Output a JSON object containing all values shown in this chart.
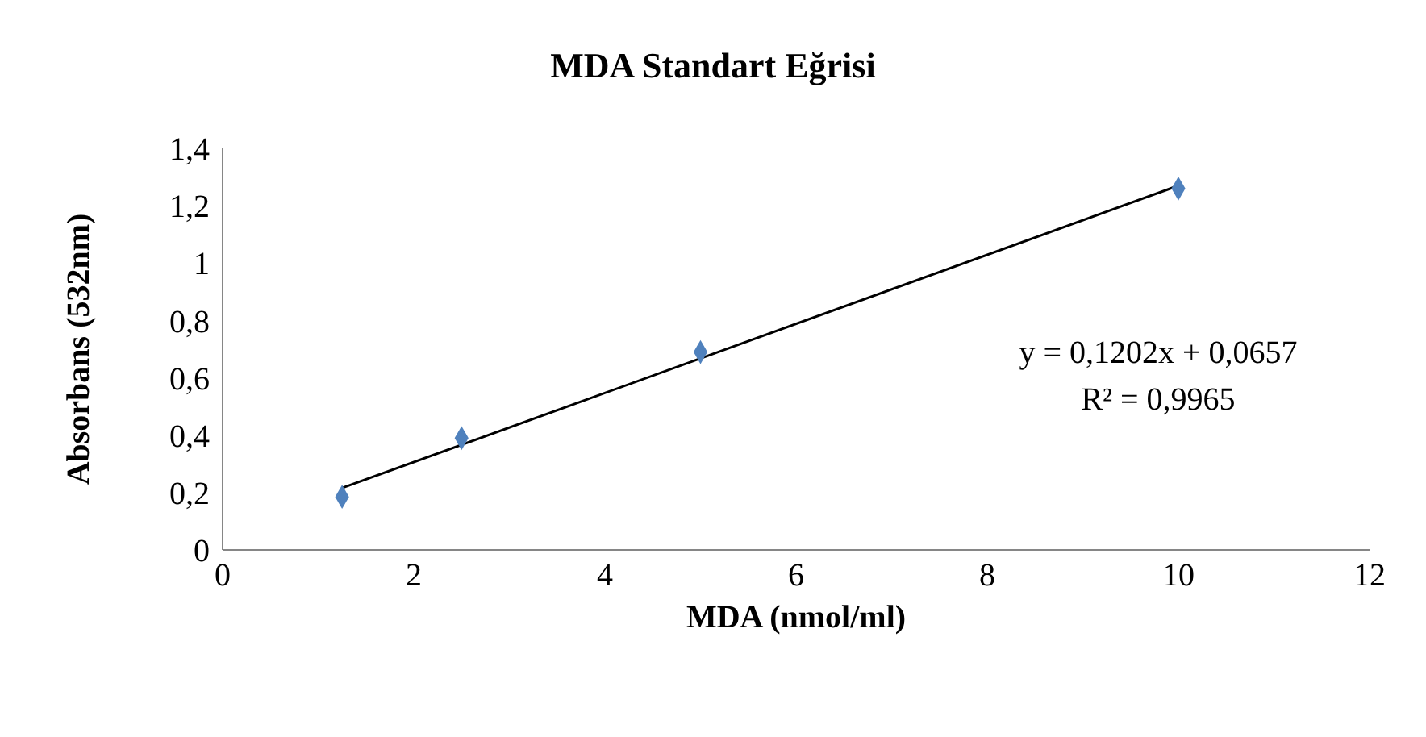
{
  "chart_data": {
    "type": "scatter",
    "title": "MDA Standart Eğrisi",
    "xlabel": "MDA (nmol/ml)",
    "ylabel": "Absorbans (532nm)",
    "series": [
      {
        "color": "#4f81bd",
        "marker": "diamond",
        "x": [
          1.25,
          2.5,
          5,
          10
        ],
        "values": [
          0.185,
          0.39,
          0.69,
          1.26
        ]
      },
      {
        "type": "line",
        "color": "#000000",
        "marker": "none",
        "line_style": "solid",
        "x": [
          1.25,
          10
        ],
        "values": [
          0.216,
          1.27
        ]
      }
    ],
    "xlim": [
      0,
      12
    ],
    "xticks": [
      0,
      2,
      4,
      6,
      8,
      10,
      12
    ],
    "ylim": [
      0,
      1.4
    ],
    "yticks": [
      0,
      {
        "value": 0.2,
        "label": "0,2"
      },
      {
        "value": 0.4,
        "label": "0,4"
      },
      {
        "value": 0.6,
        "label": "0,6"
      },
      {
        "value": 0.8,
        "label": "0,8"
      },
      1,
      {
        "value": 1.2,
        "label": "1,2"
      },
      {
        "value": 1.4,
        "label": "1,4"
      }
    ],
    "annotations": [
      "y = 0,1202x + 0,0657",
      "R² = 0,9965"
    ],
    "grid": false
  }
}
